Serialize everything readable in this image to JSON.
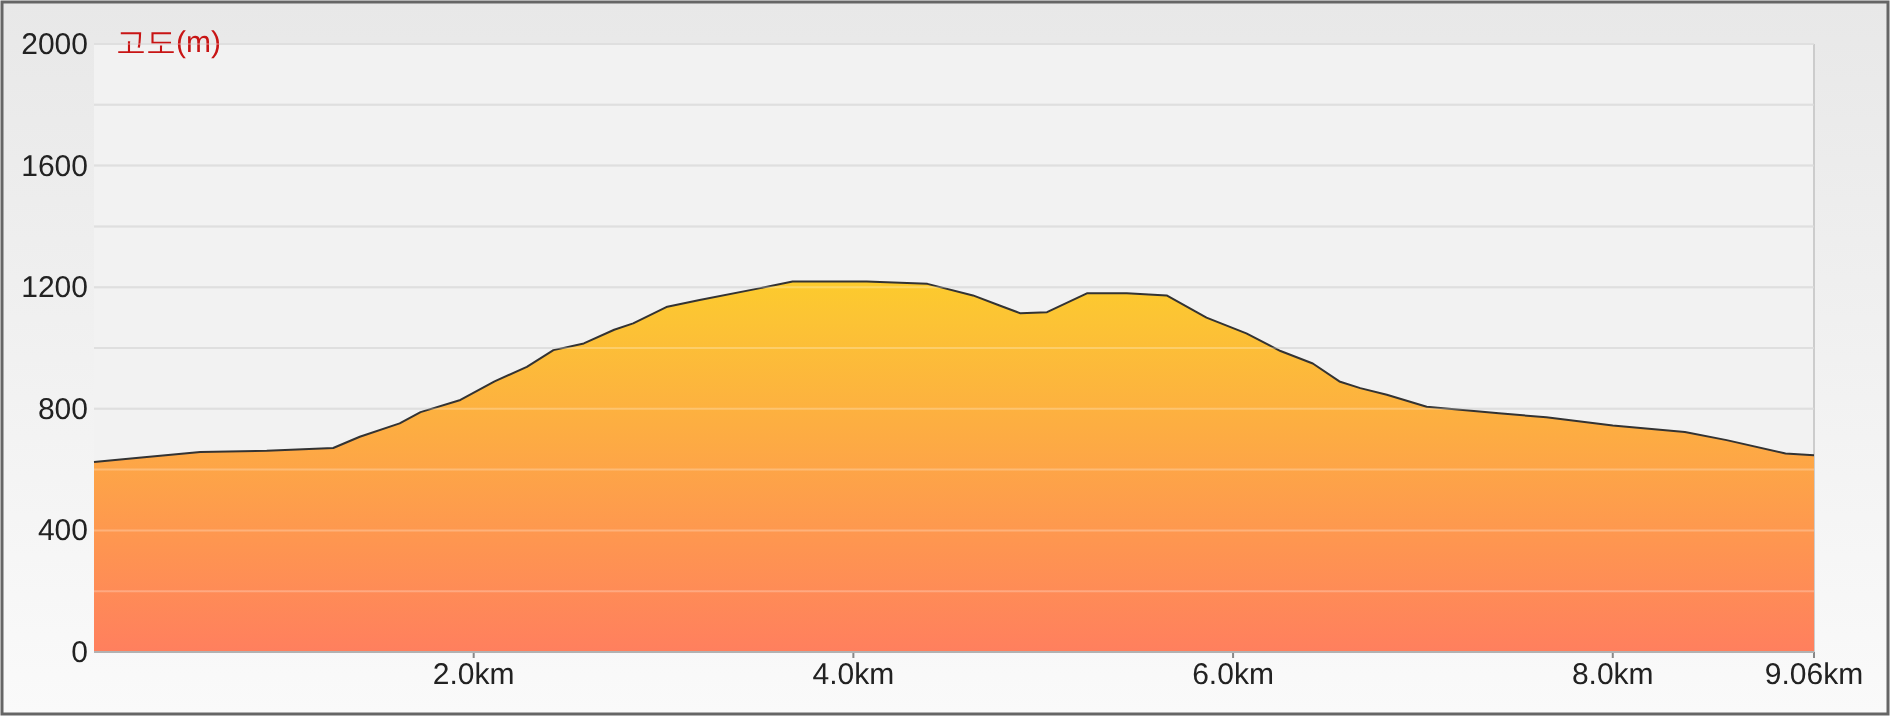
{
  "chart_data": {
    "type": "area",
    "ylabel": "고도(m)",
    "x": [
      0,
      0.25,
      0.56,
      0.91,
      1.26,
      1.4,
      1.61,
      1.72,
      1.93,
      2.11,
      2.28,
      2.42,
      2.58,
      2.74,
      2.84,
      3.02,
      3.19,
      3.51,
      3.68,
      4.07,
      4.39,
      4.63,
      4.77,
      4.88,
      5.02,
      5.23,
      5.44,
      5.65,
      5.86,
      6.07,
      6.25,
      6.42,
      6.56,
      6.67,
      6.81,
      7.02,
      7.4,
      7.65,
      8.0,
      8.38,
      8.6,
      8.91,
      9.06
    ],
    "series": [
      {
        "color": "#fcc434",
        "values": [
          625,
          640,
          658,
          662,
          671,
          708,
          752,
          789,
          829,
          890,
          938,
          993,
          1015,
          1060,
          1081,
          1136,
          1158,
          1197,
          1219,
          1219,
          1211,
          1173,
          1140,
          1114,
          1118,
          1180,
          1180,
          1173,
          1100,
          1048,
          990,
          949,
          890,
          868,
          846,
          807,
          785,
          772,
          745,
          724,
          697,
          653,
          647
        ]
      }
    ],
    "xlim": [
      0,
      9.06
    ],
    "xticks": [
      {
        "value": 2,
        "label": "2.0km"
      },
      {
        "value": 4,
        "label": "4.0km"
      },
      {
        "value": 6,
        "label": "6.0km"
      },
      {
        "value": 8,
        "label": "8.0km"
      },
      {
        "value": 9.06,
        "label": "9.06km"
      }
    ],
    "ylim": [
      0,
      2000
    ],
    "yticks": [
      0,
      {
        "value": 200,
        "label": null
      },
      400,
      {
        "value": 600,
        "label": null
      },
      800,
      {
        "value": 1000,
        "label": null
      },
      1200,
      {
        "value": 1400,
        "label": null
      },
      1600,
      {
        "value": 1800,
        "label": null
      },
      2000
    ],
    "grid": "y"
  }
}
